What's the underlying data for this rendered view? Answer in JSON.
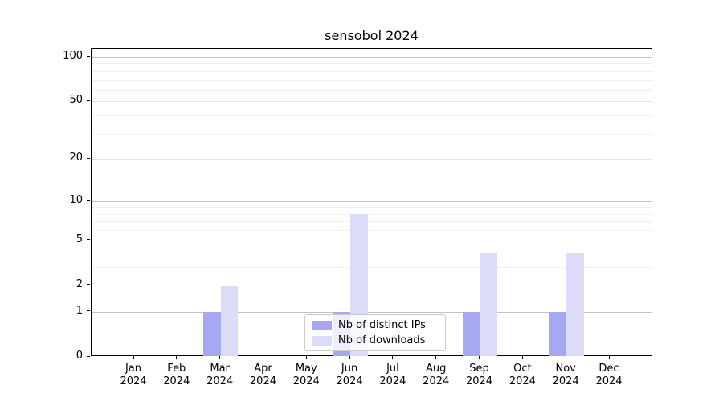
{
  "title": "sensobol 2024",
  "chart_data": {
    "type": "bar",
    "title": "sensobol 2024",
    "categories": [
      "Jan",
      "Feb",
      "Mar",
      "Apr",
      "May",
      "Jun",
      "Jul",
      "Aug",
      "Sep",
      "Oct",
      "Nov",
      "Dec"
    ],
    "category_year": "2024",
    "series": [
      {
        "name": "Nb of distinct IPs",
        "color": "#a8a8f0",
        "values": [
          0,
          0,
          1,
          0,
          0,
          1,
          0,
          0,
          1,
          0,
          1,
          0
        ]
      },
      {
        "name": "Nb of downloads",
        "color": "#dcdcf8",
        "values": [
          0,
          0,
          2,
          0,
          0,
          8,
          0,
          0,
          4,
          0,
          4,
          0
        ]
      }
    ],
    "y_axis": {
      "scale": "log10(1+x)",
      "ticks": [
        0,
        1,
        2,
        5,
        10,
        20,
        50,
        100
      ],
      "minor_ticks": [
        3,
        4,
        6,
        7,
        8,
        9,
        30,
        40,
        60,
        70,
        80,
        90
      ],
      "decade_ticks": [
        1,
        10,
        100
      ],
      "max": 113
    },
    "xlabel": "",
    "ylabel": "",
    "grid": "horizontal",
    "legend": {
      "position": "lower center",
      "entries": [
        "Nb of distinct IPs",
        "Nb of downloads"
      ]
    }
  },
  "colors": {
    "bar_distinct_ips": "#a8a8f0",
    "bar_downloads": "#dcdcf8",
    "grid_decade": "#c3c3c3",
    "grid_labeled": "#e4e4e4",
    "grid_minor": "#f0f0f0",
    "spine": "#000000",
    "legend_border": "#cccccc"
  }
}
